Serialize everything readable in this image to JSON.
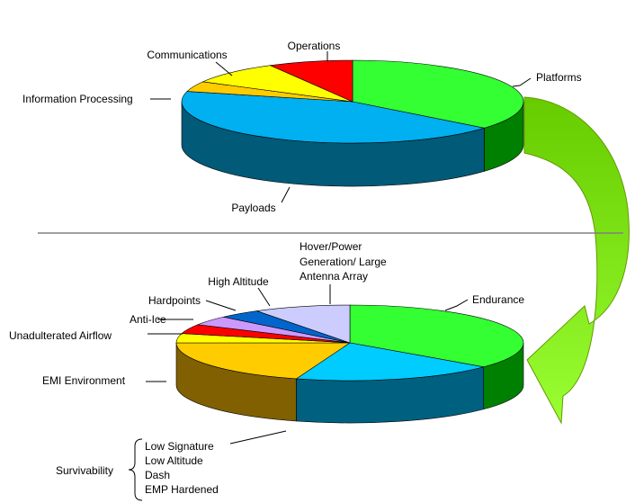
{
  "top_pie": {
    "segments": [
      {
        "key": "platforms",
        "label": "Platforms",
        "value": 0.36,
        "top_color": "#33ff33",
        "side_color": "#008000"
      },
      {
        "key": "payloads",
        "label": "Payloads",
        "value": 0.43,
        "top_color": "#00b0f0",
        "side_color": "#005a78"
      },
      {
        "key": "information_processing",
        "label": "Information Processing",
        "value": 0.04,
        "top_color": "#ffcc00",
        "side_color": "#7f6600"
      },
      {
        "key": "communications",
        "label": "Communications",
        "value": 0.09,
        "top_color": "#ffff00",
        "side_color": "#808000"
      },
      {
        "key": "operations",
        "label": "Operations",
        "value": 0.08,
        "top_color": "#ff0000",
        "side_color": "#800000"
      }
    ]
  },
  "bottom_pie": {
    "segments": [
      {
        "key": "endurance",
        "label": "Endurance",
        "value": 0.36,
        "top_color": "#33ff33",
        "side_color": "#008000"
      },
      {
        "key": "survivability",
        "label": "Survivability",
        "value": 0.19,
        "top_color": "#00ccff",
        "side_color": "#006080"
      },
      {
        "key": "emi_environment",
        "label": "EMI Environment",
        "value": 0.2,
        "top_color": "#ffcc00",
        "side_color": "#806000"
      },
      {
        "key": "unadulterated_airflow",
        "label": "Unadulterated Airflow",
        "value": 0.04,
        "top_color": "#ffff00",
        "side_color": "#808000"
      },
      {
        "key": "anti_ice",
        "label": "Anti-Ice",
        "value": 0.04,
        "top_color": "#ff0000",
        "side_color": "#800000"
      },
      {
        "key": "hardpoints",
        "label": "Hardpoints",
        "value": 0.04,
        "top_color": "#cc99ff",
        "side_color": "#664c80"
      },
      {
        "key": "high_altitude",
        "label": "High Altitude",
        "value": 0.04,
        "top_color": "#0066cc",
        "side_color": "#003366"
      },
      {
        "key": "hover_power",
        "label": "Hover/Power Generation/ Large Antenna Array",
        "value": 0.09,
        "top_color": "#ccccff",
        "side_color": "#666680"
      }
    ]
  },
  "labels": {
    "operations": "Operations",
    "communications": "Communications",
    "information_processing": "Information Processing",
    "platforms": "Platforms",
    "payloads": "Payloads",
    "hover_line1": "Hover/Power",
    "hover_line2": "Generation/ Large",
    "hover_line3": "Antenna Array",
    "high_altitude": "High Altitude",
    "hardpoints": "Hardpoints",
    "endurance": "Endurance",
    "anti_ice": "Anti-Ice",
    "unadulterated_airflow": "Unadulterated Airflow",
    "emi_environment": "EMI Environment",
    "survivability": "Survivability",
    "survivability_items": [
      "Low Signature",
      "Low Altitude",
      "Dash",
      "EMP Hardened"
    ]
  },
  "colors": {
    "divider": "#808080",
    "arrow_top": "#66cc00",
    "arrow_bottom": "#99ff33",
    "arrow_outline": "#669900"
  }
}
